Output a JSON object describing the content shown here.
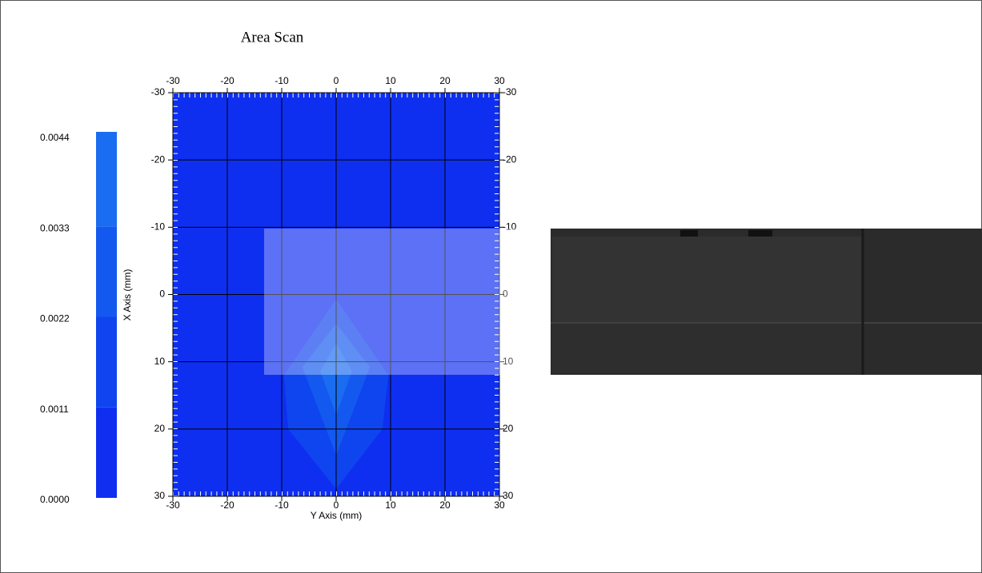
{
  "chart_data": {
    "type": "contour",
    "title": "Area Scan",
    "xlabel": "Y Axis (mm)",
    "ylabel": "X Axis (mm)",
    "xlim": [
      -30,
      30
    ],
    "ylim": [
      -30,
      30
    ],
    "y_inverted": true,
    "xticks": [
      -30,
      -20,
      -10,
      0,
      10,
      20,
      30
    ],
    "yticks": [
      -30,
      -20,
      -10,
      0,
      10,
      20,
      30
    ],
    "grid": true,
    "background_color": "#0f2ff0",
    "colorbar": {
      "lim": [
        0,
        0.0044
      ],
      "ticks": [
        {
          "value": 0,
          "label": "0.0000"
        },
        {
          "value": 0.0011,
          "label": "0.0011"
        },
        {
          "value": 0.0022,
          "label": "0.0022"
        },
        {
          "value": 0.0033,
          "label": "0.0033"
        },
        {
          "value": 0.0044,
          "label": "0.0044"
        }
      ],
      "colors": [
        "#0f2ff0",
        "#0f45ef",
        "#1459ef",
        "#1a6cf0"
      ]
    },
    "contours": [
      {
        "level": 0.0011,
        "color": "#0f45ef",
        "points": [
          [
            0,
            0.7
          ],
          [
            -9.6,
            12
          ],
          [
            -8.8,
            20
          ],
          [
            0,
            28.9
          ],
          [
            8.5,
            20
          ],
          [
            9.6,
            12
          ]
        ]
      },
      {
        "level": 0.0022,
        "color": "#1459ef",
        "points": [
          [
            0,
            4.3
          ],
          [
            -6.2,
            10.8
          ],
          [
            0,
            23.9
          ],
          [
            6.2,
            10.8
          ]
        ]
      },
      {
        "level": 0.0033,
        "color": "#1a6cf0",
        "points": [
          [
            0,
            7.2
          ],
          [
            -2.9,
            11.4
          ],
          [
            0,
            17.9
          ],
          [
            2.9,
            11.4
          ]
        ]
      }
    ]
  }
}
